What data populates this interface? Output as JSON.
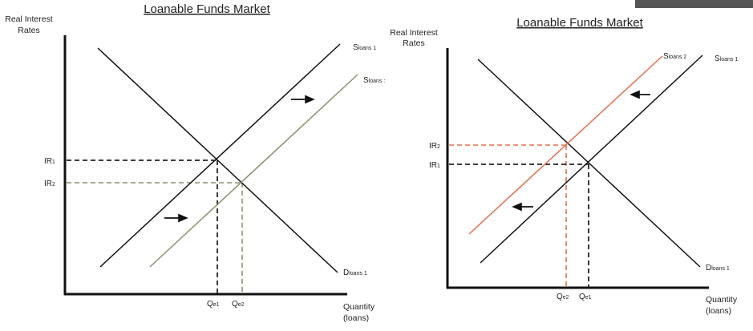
{
  "colors": {
    "left_shift_supply": "#8a8f70",
    "right_shift_supply": "#e07050",
    "base": "#111111"
  },
  "left": {
    "title": "Loanable Funds Market",
    "y_axis": [
      "Real Interest",
      "Rates"
    ],
    "x_axis": [
      "Quantity",
      "(loans)"
    ],
    "ir1": "IR",
    "ir1_sub": "1",
    "ir2": "IR",
    "ir2_sub": "2",
    "qe1": "Q",
    "qe1_sub": "e1",
    "qe2": "Q",
    "qe2_sub": "e2",
    "s1": "S",
    "s1_sub": "loans 1",
    "s2": "S",
    "s2_sub": "loans :",
    "d1": "D",
    "d1_sub": "loans 1",
    "shift_direction": "right"
  },
  "right": {
    "title": "Loanable Funds Market",
    "y_axis": [
      "Real Interest",
      "Rates"
    ],
    "x_axis": [
      "Quantity",
      "(loans)"
    ],
    "ir1": "IR",
    "ir1_sub": "1",
    "ir2": "IR",
    "ir2_sub": "2",
    "qe1": "Q",
    "qe1_sub": "e1",
    "qe2": "Q",
    "qe2_sub": "e2",
    "s1": "S",
    "s1_sub": "loans 1",
    "s2": "S",
    "s2_sub": "loans 2",
    "d1": "D",
    "d1_sub": "loans 1",
    "shift_direction": "left"
  }
}
